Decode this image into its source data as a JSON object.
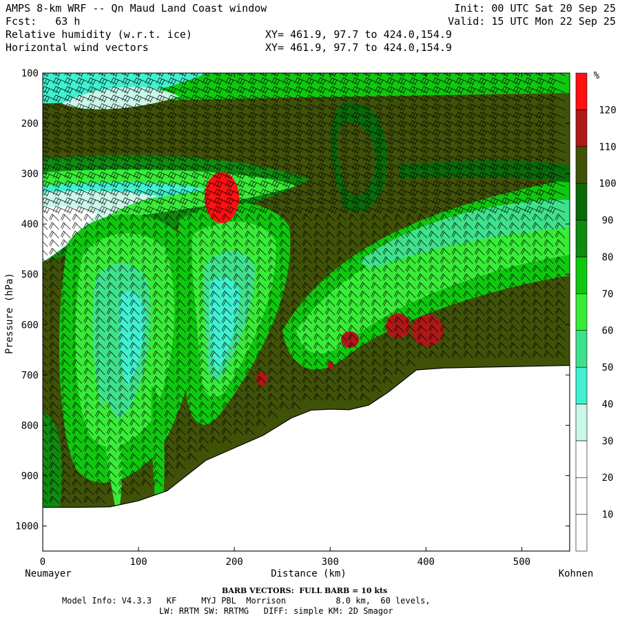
{
  "header": {
    "title": "AMPS 8-km WRF -- Qn Maud Land Coast window",
    "fcst": "Fcst:   63 h",
    "init": "Init: 00 UTC Sat 20 Sep 25",
    "valid": "Valid: 15 UTC Mon 22 Sep 25",
    "field1": "Relative humidity (w.r.t. ice)",
    "field2": "Horizontal wind vectors",
    "xy1": "XY= 461.9, 97.7 to 424.0,154.9",
    "xy2": "XY= 461.9, 97.7 to 424.0,154.9"
  },
  "chart_data": {
    "type": "heatmap",
    "xlabel": "Distance (km)",
    "ylabel": "Pressure (hPa)",
    "xlim": [
      0,
      550
    ],
    "ylim": [
      1050,
      100
    ],
    "x_ticks": [
      0,
      100,
      200,
      300,
      400,
      500
    ],
    "y_ticks": [
      100,
      200,
      300,
      400,
      500,
      600,
      700,
      800,
      900,
      1000
    ],
    "left_endpoint": "Neumayer",
    "right_endpoint": "Kohnen",
    "colorbar": {
      "unit": "%",
      "levels": [
        10,
        20,
        30,
        40,
        50,
        60,
        70,
        80,
        90,
        100,
        110,
        120
      ],
      "colors": [
        "#ffffff",
        "#ffffff",
        "#ffffff",
        "#c9f7ea",
        "#40f0d0",
        "#3fe28c",
        "#38ec38",
        "#10c810",
        "#108a10",
        "#0a6a0a",
        "#405208",
        "#b01818",
        "#ff1010"
      ]
    },
    "terrain_surface": [
      {
        "x": 0,
        "p": 963
      },
      {
        "x": 40,
        "p": 963
      },
      {
        "x": 70,
        "p": 962
      },
      {
        "x": 100,
        "p": 950
      },
      {
        "x": 130,
        "p": 930
      },
      {
        "x": 170,
        "p": 870
      },
      {
        "x": 200,
        "p": 845
      },
      {
        "x": 230,
        "p": 820
      },
      {
        "x": 260,
        "p": 785
      },
      {
        "x": 280,
        "p": 770
      },
      {
        "x": 300,
        "p": 768
      },
      {
        "x": 320,
        "p": 769
      },
      {
        "x": 340,
        "p": 760
      },
      {
        "x": 360,
        "p": 735
      },
      {
        "x": 390,
        "p": 690
      },
      {
        "x": 420,
        "p": 686
      },
      {
        "x": 500,
        "p": 683
      },
      {
        "x": 550,
        "p": 681
      }
    ],
    "features": [
      {
        "name": "dry tongue",
        "rh": 40,
        "x": [
          85,
          180
        ],
        "p": [
          380,
          620
        ]
      },
      {
        "name": "dry band",
        "rh": 45,
        "x": [
          170,
          215
        ],
        "p": [
          440,
          650
        ]
      },
      {
        "name": "supersaturated patch",
        "rh": 120,
        "x": [
          168,
          200
        ],
        "p": [
          290,
          380
        ]
      },
      {
        "name": "supersaturated patch",
        "rh": 115,
        "x": [
          390,
          420
        ],
        "p": [
          590,
          650
        ]
      },
      {
        "name": "supersaturated patch",
        "rh": 115,
        "x": [
          355,
          380
        ],
        "p": [
          590,
          640
        ]
      },
      {
        "name": "supersaturated patch",
        "rh": 115,
        "x": [
          310,
          330
        ],
        "p": [
          615,
          650
        ]
      }
    ]
  },
  "footer": {
    "barb": "BARB VECTORS:  FULL BARB = 10 kts",
    "line1": "Model Info: V4.3.3   KF     MYJ PBL  Morrison          8.0 km,  60 levels,",
    "line2": "LW: RRTM SW: RRTMG   DIFF: simple KM: 2D Smagor"
  }
}
